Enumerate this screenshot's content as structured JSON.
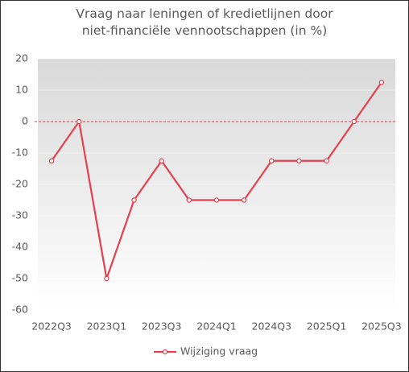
{
  "chart_data": {
    "type": "line",
    "title": "Vraag naar leningen of kredietlijnen door niet-financiële vennootschappen (in %)",
    "categories": [
      "2022Q3",
      null,
      "2023Q1",
      null,
      "2023Q3",
      null,
      "2024Q1",
      null,
      "2024Q3",
      null,
      "2025Q1",
      null,
      "2025Q3"
    ],
    "series": [
      {
        "name": "Wijziging vraag",
        "color": "#e5404f",
        "values": [
          -12.5,
          0,
          -50,
          -25,
          -12.5,
          -25,
          -25,
          -25,
          -12.5,
          -12.5,
          -12.5,
          0,
          12.5
        ]
      }
    ],
    "ylim": [
      -60,
      20
    ],
    "yticks": [
      -60,
      -50,
      -40,
      -30,
      -20,
      -10,
      0,
      10,
      20
    ],
    "grid": true,
    "zero_line": true,
    "legend": "bottom"
  }
}
